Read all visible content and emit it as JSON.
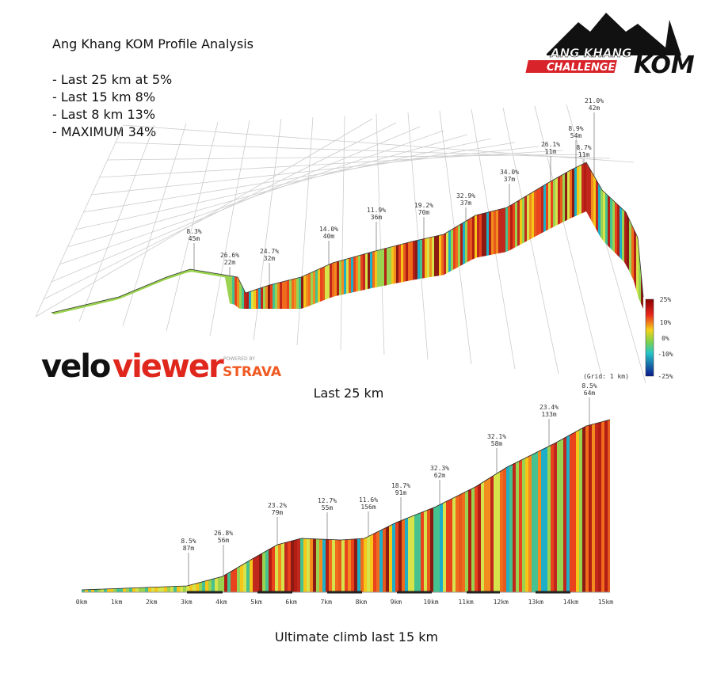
{
  "header": {
    "title": "Ang Khang KOM Profile Analysis",
    "points": [
      "- Last 25 km at 5%",
      "- Last 15 km 8%",
      "- Last 8 km 13%",
      "- MAXIMUM 34%"
    ]
  },
  "logo": {
    "top": "ANG KHANG",
    "bottom": "CHALLENGE",
    "kom": "KOM"
  },
  "top_profile": {
    "caption": "Last 25 km",
    "annotations": [
      {
        "grade": "8.3%",
        "length": "45m"
      },
      {
        "grade": "26.6%",
        "length": "22m"
      },
      {
        "grade": "24.7%",
        "length": "32m"
      },
      {
        "grade": "14.0%",
        "length": "40m"
      },
      {
        "grade": "11.9%",
        "length": "36m"
      },
      {
        "grade": "19.2%",
        "length": "70m"
      },
      {
        "grade": "32.9%",
        "length": "37m"
      },
      {
        "grade": "34.0%",
        "length": "37m"
      },
      {
        "grade": "26.1%",
        "length": "11m"
      },
      {
        "grade": "8.9%",
        "length": "54m"
      },
      {
        "grade": "8.7%",
        "length": "11m"
      },
      {
        "grade": "21.0%",
        "length": "42m"
      }
    ],
    "legend": [
      "25%",
      "10%",
      "0%",
      "-10%",
      "-25%"
    ],
    "grid_note": "(Grid: 1 km)",
    "brand_velo": "velo",
    "brand_viewer": "viewer",
    "brand_powered": "POWERED BY",
    "brand_strava": "STRAVA"
  },
  "bottom_profile": {
    "caption": "Ultimate climb last 15 km",
    "annotations": [
      {
        "grade": "8.5%",
        "length": "87m"
      },
      {
        "grade": "26.8%",
        "length": "56m"
      },
      {
        "grade": "23.2%",
        "length": "79m"
      },
      {
        "grade": "12.7%",
        "length": "55m"
      },
      {
        "grade": "11.6%",
        "length": "156m"
      },
      {
        "grade": "18.7%",
        "length": "91m"
      },
      {
        "grade": "32.3%",
        "length": "62m"
      },
      {
        "grade": "32.1%",
        "length": "58m"
      },
      {
        "grade": "23.4%",
        "length": "133m"
      },
      {
        "grade": "8.5%",
        "length": "64m"
      }
    ],
    "ticks": [
      "0km",
      "1km",
      "2km",
      "3km",
      "4km",
      "5km",
      "6km",
      "7km",
      "8km",
      "9km",
      "10km",
      "11km",
      "12km",
      "13km",
      "14km",
      "15km"
    ]
  }
}
